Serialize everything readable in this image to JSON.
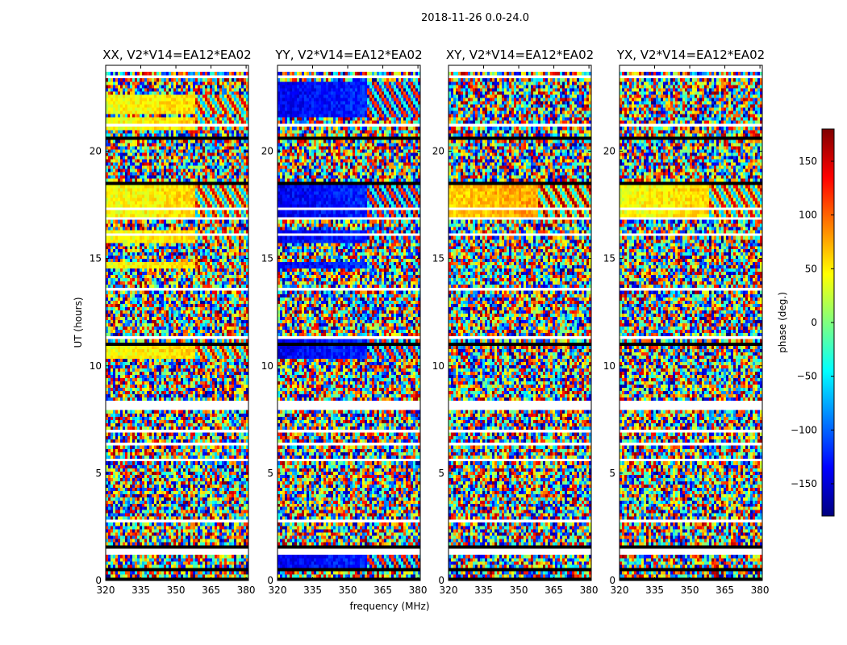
{
  "figure_title": "2018-11-26 0.0-24.0",
  "chart_data": {
    "type": "heatmap",
    "xlabel": "frequency (MHz)",
    "ylabel": "UT (hours)",
    "xlim": [
      320,
      381
    ],
    "ylim": [
      0,
      24
    ],
    "xticks": [
      320,
      335,
      350,
      365,
      380
    ],
    "yticks": [
      0,
      5,
      10,
      15,
      20
    ],
    "value_label": "phase (deg.)",
    "value_range": [
      -180,
      180
    ],
    "colorbar_ticks": [
      -150,
      -100,
      -50,
      0,
      50,
      100,
      150
    ],
    "colorbar_ticklabels": [
      "−150",
      "−100",
      "−50",
      "0",
      "50",
      "100",
      "150"
    ],
    "colormap": [
      "#00007f",
      "#0000ff",
      "#007fff",
      "#00ffff",
      "#7fff7f",
      "#ffff00",
      "#ff7f00",
      "#ff0000",
      "#7f0000"
    ],
    "blank_hours": [
      [
        0.85,
        0.95
      ],
      [
        1.2,
        1.45
      ],
      [
        2.75,
        2.85
      ],
      [
        3.0,
        3.05
      ],
      [
        5.55,
        5.7
      ],
      [
        6.3,
        6.4
      ],
      [
        6.95,
        7.05
      ],
      [
        7.45,
        7.5
      ],
      [
        7.95,
        8.2
      ],
      [
        8.3,
        8.45
      ],
      [
        9.85,
        9.95
      ],
      [
        11.3,
        11.4
      ],
      [
        11.5,
        11.55
      ],
      [
        13.55,
        13.6
      ],
      [
        16.05,
        16.2
      ],
      [
        16.8,
        17.0
      ],
      [
        17.3,
        17.35
      ],
      [
        19.2,
        19.25
      ],
      [
        21.15,
        21.25
      ],
      [
        22.2,
        22.25
      ],
      [
        23.35,
        23.5
      ],
      [
        23.65,
        23.8
      ],
      [
        23.9,
        24.0
      ]
    ],
    "black_hours": [
      [
        0.05,
        0.1
      ],
      [
        0.5,
        0.55
      ],
      [
        1.55,
        1.6
      ],
      [
        3.7,
        3.75
      ],
      [
        4.75,
        4.8
      ],
      [
        5.35,
        5.4
      ],
      [
        7.6,
        7.65
      ],
      [
        8.15,
        8.2
      ],
      [
        11.0,
        11.05
      ],
      [
        12.6,
        12.65
      ],
      [
        14.7,
        14.75
      ],
      [
        15.9,
        15.95
      ],
      [
        16.1,
        16.15
      ],
      [
        17.2,
        17.25
      ],
      [
        18.5,
        18.55
      ],
      [
        19.9,
        19.95
      ],
      [
        20.6,
        20.65
      ],
      [
        21.6,
        21.65
      ],
      [
        23.05,
        23.1
      ]
    ],
    "panels": [
      {
        "title": "XX, V2*V14=EA12*EA02",
        "smooth_phase_deg": 40,
        "smooth_bands": [
          [
            1.4,
            1.6
          ],
          [
            10.4,
            11.0
          ],
          [
            14.6,
            14.9
          ],
          [
            15.8,
            16.4
          ],
          [
            16.9,
            18.4
          ],
          [
            21.0,
            21.6
          ],
          [
            21.8,
            22.6
          ]
        ]
      },
      {
        "title": "YY, V2*V14=EA12*EA02",
        "smooth_phase_deg": -140,
        "smooth_bands": [
          [
            0.6,
            0.9
          ],
          [
            0.95,
            1.2
          ],
          [
            10.4,
            11.4
          ],
          [
            14.6,
            14.9
          ],
          [
            15.8,
            16.4
          ],
          [
            16.9,
            18.4
          ],
          [
            21.6,
            23.3
          ]
        ]
      },
      {
        "title": "XY, V2*V14=EA12*EA02",
        "smooth_phase_deg": 60,
        "smooth_bands": [
          [
            17.0,
            18.4
          ]
        ]
      },
      {
        "title": "YX, V2*V14=EA12*EA02",
        "smooth_phase_deg": 40,
        "smooth_bands": [
          [
            17.0,
            18.4
          ]
        ]
      }
    ]
  }
}
